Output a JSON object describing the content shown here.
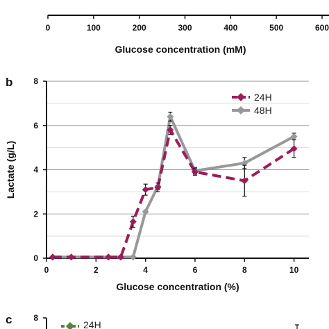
{
  "chart_data": [
    {
      "panel": "",
      "type": "line",
      "xlabel": "Glucose concentration (mM)",
      "ylabel": "",
      "xlim": [
        0,
        600
      ],
      "x_ticks": [
        "0",
        "100",
        "200",
        "300",
        "400",
        "500",
        "600"
      ],
      "series": [],
      "note": "partially visible (axis only)"
    },
    {
      "panel": "b",
      "type": "line",
      "xlabel": "Glucose concentration (%)",
      "ylabel": "Lactate (g/L)",
      "xlim": [
        0,
        10.6
      ],
      "ylim": [
        0,
        8
      ],
      "x_ticks": [
        "0",
        "2",
        "4",
        "6",
        "8",
        "10"
      ],
      "y_ticks": [
        "0",
        "2",
        "4",
        "6",
        "8"
      ],
      "grid": true,
      "legend": "top-right",
      "series": [
        {
          "name": "24H",
          "color": "#9c1d5a",
          "style": "dashed",
          "marker": "diamond",
          "x": [
            0.25,
            1,
            2.5,
            3,
            3.5,
            4,
            4.5,
            5,
            6,
            8,
            10
          ],
          "y": [
            0.05,
            0.05,
            0.05,
            0.05,
            1.65,
            3.1,
            3.2,
            5.8,
            3.9,
            3.5,
            4.95
          ],
          "err": [
            0,
            0,
            0,
            0,
            0.25,
            0.25,
            0.2,
            0.2,
            0.15,
            0.7,
            0.4
          ]
        },
        {
          "name": "48H",
          "color": "#999999",
          "style": "solid",
          "marker": "diamond",
          "x": [
            0.25,
            1,
            2.5,
            3,
            3.5,
            4,
            4.5,
            5,
            6,
            8,
            10
          ],
          "y": [
            0.05,
            0.05,
            0.05,
            0.05,
            0.05,
            2.1,
            3.25,
            6.4,
            3.95,
            4.3,
            5.5
          ],
          "err": [
            0,
            0,
            0,
            0,
            0,
            0,
            0.15,
            0.2,
            0.15,
            0.25,
            0.15
          ]
        }
      ]
    },
    {
      "panel": "c",
      "type": "line",
      "ylim_top_label": "8",
      "y_ticks": [
        "8"
      ],
      "legend": "top-left",
      "series": [
        {
          "name": "24H",
          "color": "#4e8a3a"
        }
      ],
      "note": "partially visible"
    }
  ]
}
